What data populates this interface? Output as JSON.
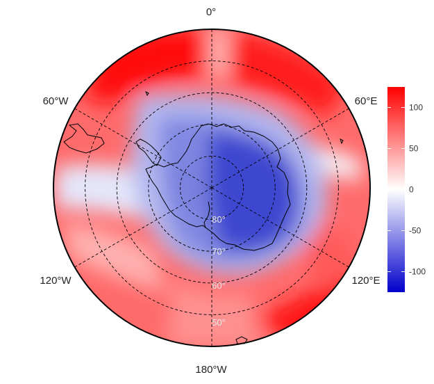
{
  "map": {
    "projection": "south-polar-stereographic",
    "longitude_labels": [
      {
        "text": "0°",
        "lon": 0
      },
      {
        "text": "60°E",
        "lon": 60
      },
      {
        "text": "120°E",
        "lon": 120
      },
      {
        "text": "180°W",
        "lon": 180
      },
      {
        "text": "120°W",
        "lon": -120
      },
      {
        "text": "60°W",
        "lon": -60
      }
    ],
    "latitude_labels": [
      {
        "text": "80°",
        "lat": -80
      },
      {
        "text": "70°",
        "lat": -70
      },
      {
        "text": "60°",
        "lat": -60
      },
      {
        "text": "50°",
        "lat": -50
      }
    ],
    "latitude_circles": [
      -80,
      -70,
      -60,
      -50
    ],
    "meridians": [
      0,
      60,
      120,
      180,
      -60,
      -120
    ],
    "outer_latitude": -40,
    "gridline_style": "dashed black",
    "field_colors": {
      "negative": "#0000cc",
      "zero": "#ffffff",
      "positive": "#ff0000"
    }
  },
  "colorbar": {
    "min": -125,
    "max": 125,
    "ticks": [
      {
        "value": 100,
        "label": "100"
      },
      {
        "value": 50,
        "label": "50"
      },
      {
        "value": 0,
        "label": "0"
      },
      {
        "value": -50,
        "label": "-50"
      },
      {
        "value": -100,
        "label": "-100"
      }
    ]
  }
}
